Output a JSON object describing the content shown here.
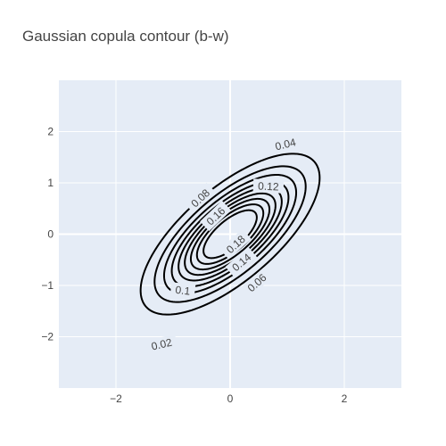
{
  "chart_data": {
    "type": "contour",
    "title": "Gaussian copula contour (b-w)",
    "xlabel": "",
    "ylabel": "",
    "xlim": [
      -3,
      3
    ],
    "ylim": [
      -3,
      3
    ],
    "xticks": [
      -2,
      0,
      2
    ],
    "yticks": [
      -2,
      -1,
      0,
      1,
      2
    ],
    "xtick_labels": [
      "−2",
      "0",
      "2"
    ],
    "ytick_labels": [
      "−2",
      "−1",
      "0",
      "1",
      "2"
    ],
    "correlation": 0.7,
    "levels": [
      0.02,
      0.04,
      0.06,
      0.08,
      0.1,
      0.12,
      0.14,
      0.16,
      0.18
    ],
    "level_labels": [
      {
        "text": "0.02",
        "x": -1.2,
        "y": -2.15
      },
      {
        "text": "0.04",
        "x": 0.97,
        "y": 1.75
      },
      {
        "text": "0.06",
        "x": 0.47,
        "y": -0.95
      },
      {
        "text": "0.08",
        "x": -0.52,
        "y": 0.7
      },
      {
        "text": "0.1",
        "x": -0.83,
        "y": -1.1
      },
      {
        "text": "0.12",
        "x": 0.67,
        "y": 0.93
      },
      {
        "text": "0.14",
        "x": 0.2,
        "y": -0.55
      },
      {
        "text": "0.16",
        "x": -0.25,
        "y": 0.35
      },
      {
        "text": "0.18",
        "x": 0.1,
        "y": -0.2
      }
    ],
    "grid": true,
    "legend": false,
    "line_color": "#000000",
    "plot_bg": "#e5ecf6",
    "grid_color": "#ffffff"
  }
}
